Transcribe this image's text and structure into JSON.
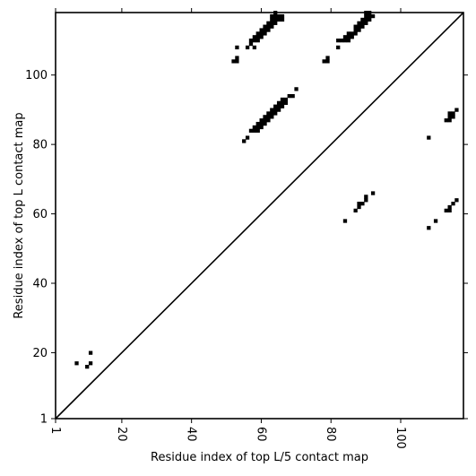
{
  "chart_data": {
    "type": "heatmap",
    "xlabel": "Residue index of top L/5 contact map",
    "ylabel": "Residue index of top L contact map",
    "xlim": [
      1,
      118
    ],
    "ylim": [
      1,
      118
    ],
    "x_ticks": [
      1,
      20,
      40,
      60,
      80,
      100
    ],
    "y_ticks": [
      1,
      20,
      40,
      60,
      80,
      100
    ],
    "diagonal": true,
    "grid": false,
    "contact_color": "#000000",
    "upper_triangle_contacts": [
      [
        52,
        104
      ],
      [
        53,
        104
      ],
      [
        53,
        105
      ],
      [
        53,
        108
      ],
      [
        56,
        108
      ],
      [
        57,
        109
      ],
      [
        58,
        108
      ],
      [
        57,
        110
      ],
      [
        58,
        110
      ],
      [
        58,
        111
      ],
      [
        59,
        110
      ],
      [
        59,
        111
      ],
      [
        59,
        112
      ],
      [
        60,
        111
      ],
      [
        60,
        112
      ],
      [
        60,
        113
      ],
      [
        61,
        112
      ],
      [
        61,
        113
      ],
      [
        61,
        114
      ],
      [
        62,
        113
      ],
      [
        62,
        114
      ],
      [
        62,
        115
      ],
      [
        63,
        114
      ],
      [
        63,
        115
      ],
      [
        63,
        116
      ],
      [
        64,
        115
      ],
      [
        64,
        116
      ],
      [
        64,
        117
      ],
      [
        65,
        116
      ],
      [
        65,
        117
      ],
      [
        66,
        116
      ],
      [
        66,
        117
      ],
      [
        63,
        117
      ],
      [
        64,
        118
      ],
      [
        55,
        81
      ],
      [
        56,
        82
      ],
      [
        57,
        84
      ],
      [
        58,
        84
      ],
      [
        58,
        85
      ],
      [
        59,
        84
      ],
      [
        59,
        85
      ],
      [
        59,
        86
      ],
      [
        60,
        85
      ],
      [
        60,
        86
      ],
      [
        60,
        87
      ],
      [
        61,
        86
      ],
      [
        61,
        87
      ],
      [
        61,
        88
      ],
      [
        62,
        87
      ],
      [
        62,
        88
      ],
      [
        62,
        89
      ],
      [
        63,
        88
      ],
      [
        63,
        89
      ],
      [
        63,
        90
      ],
      [
        64,
        89
      ],
      [
        64,
        90
      ],
      [
        64,
        91
      ],
      [
        65,
        90
      ],
      [
        65,
        91
      ],
      [
        65,
        92
      ],
      [
        66,
        91
      ],
      [
        66,
        92
      ],
      [
        66,
        93
      ],
      [
        67,
        92
      ],
      [
        67,
        93
      ],
      [
        68,
        94
      ],
      [
        69,
        94
      ],
      [
        70,
        96
      ],
      [
        78,
        104
      ],
      [
        79,
        104
      ],
      [
        79,
        105
      ],
      [
        82,
        108
      ],
      [
        82,
        110
      ],
      [
        83,
        110
      ],
      [
        84,
        110
      ],
      [
        84,
        111
      ],
      [
        85,
        110
      ],
      [
        85,
        111
      ],
      [
        85,
        112
      ],
      [
        86,
        111
      ],
      [
        86,
        112
      ],
      [
        87,
        112
      ],
      [
        87,
        113
      ],
      [
        87,
        114
      ],
      [
        88,
        113
      ],
      [
        88,
        114
      ],
      [
        88,
        115
      ],
      [
        89,
        114
      ],
      [
        89,
        115
      ],
      [
        89,
        116
      ],
      [
        90,
        115
      ],
      [
        90,
        116
      ],
      [
        90,
        117
      ],
      [
        91,
        116
      ],
      [
        91,
        117
      ],
      [
        92,
        117
      ],
      [
        90,
        118
      ],
      [
        91,
        118
      ]
    ],
    "lower_triangle_contacts": [
      [
        7,
        17
      ],
      [
        10,
        16
      ],
      [
        11,
        17
      ],
      [
        11,
        20
      ],
      [
        84,
        58
      ],
      [
        87,
        61
      ],
      [
        88,
        62
      ],
      [
        88,
        63
      ],
      [
        89,
        63
      ],
      [
        90,
        64
      ],
      [
        90,
        65
      ],
      [
        92,
        66
      ],
      [
        108,
        56
      ],
      [
        110,
        58
      ],
      [
        108,
        82
      ],
      [
        113,
        61
      ],
      [
        114,
        61
      ],
      [
        114,
        62
      ],
      [
        115,
        63
      ],
      [
        116,
        64
      ],
      [
        113,
        87
      ],
      [
        114,
        87
      ],
      [
        114,
        88
      ],
      [
        115,
        88
      ],
      [
        114,
        89
      ],
      [
        115,
        89
      ],
      [
        116,
        90
      ]
    ]
  }
}
